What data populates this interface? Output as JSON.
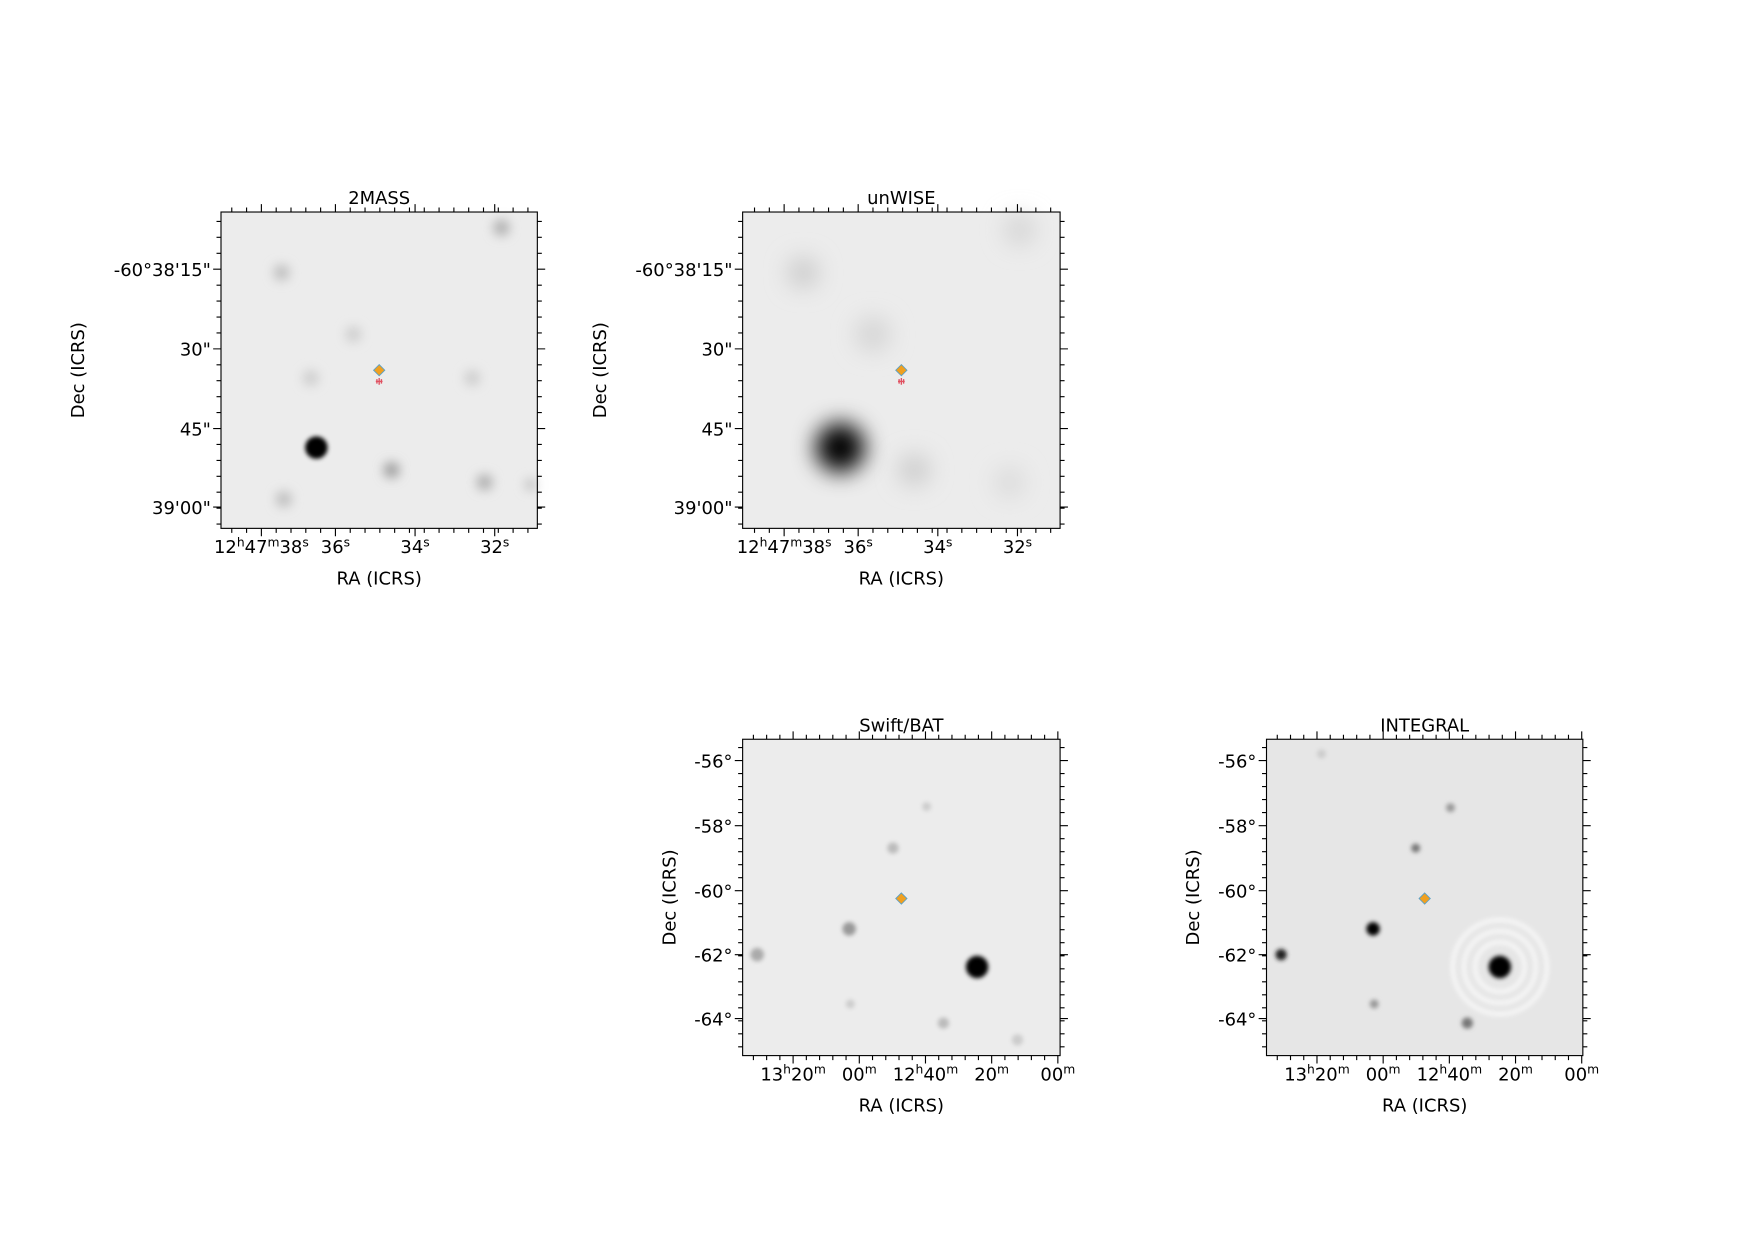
{
  "chart_data": [
    {
      "type": "image",
      "title": "2MASS",
      "xlabel": "RA (ICRS)",
      "ylabel": "Dec (ICRS)",
      "xticks": [
        [
          "12",
          "h",
          "47",
          "m",
          "38",
          "s"
        ],
        [
          "36",
          "s"
        ],
        [
          "34",
          "s"
        ],
        [
          "32",
          "s"
        ]
      ],
      "yticks": [
        "-60°38'15\"",
        "30\"",
        "45\"",
        "39'00\""
      ]
    },
    {
      "type": "image",
      "title": "unWISE",
      "xlabel": "RA (ICRS)",
      "ylabel": "Dec (ICRS)",
      "xticks": [
        [
          "12",
          "h",
          "47",
          "m",
          "38",
          "s"
        ],
        [
          "36",
          "s"
        ],
        [
          "34",
          "s"
        ],
        [
          "32",
          "s"
        ]
      ],
      "yticks": [
        "-60°38'15\"",
        "30\"",
        "45\"",
        "39'00\""
      ]
    },
    {
      "type": "image",
      "title": "Swift/BAT",
      "xlabel": "RA (ICRS)",
      "ylabel": "Dec (ICRS)",
      "xticks": [
        [
          "13",
          "h",
          "20",
          "m"
        ],
        [
          "00",
          "m"
        ],
        [
          "12",
          "h",
          "40",
          "m"
        ],
        [
          "20",
          "m"
        ],
        [
          "00",
          "m"
        ]
      ],
      "yticks": [
        "-56°",
        "-58°",
        "-60°",
        "-62°",
        "-64°"
      ]
    },
    {
      "type": "image",
      "title": "INTEGRAL",
      "xlabel": "RA (ICRS)",
      "ylabel": "Dec (ICRS)",
      "xticks": [
        [
          "13",
          "h",
          "20",
          "m"
        ],
        [
          "00",
          "m"
        ],
        [
          "12",
          "h",
          "40",
          "m"
        ],
        [
          "20",
          "m"
        ],
        [
          "00",
          "m"
        ]
      ],
      "yticks": [
        "-56°",
        "-58°",
        "-60°",
        "-62°",
        "-64°"
      ]
    }
  ]
}
